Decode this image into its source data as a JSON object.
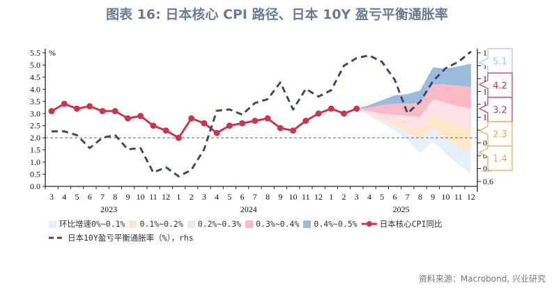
{
  "title": "图表 16: 日本核心 CPI 路径、日本 10Y 盈亏平衡通胀率",
  "source": "资料来源：Macrobond, 兴业研究",
  "chart_data": {
    "type": "line",
    "title": "图表 16: 日本核心 CPI 路径、日本 10Y 盈亏平衡通胀率",
    "ylabel": "%",
    "ylim": [
      0,
      5.5
    ],
    "yticks": [
      "0.0",
      "0.5",
      "1.0",
      "1.5",
      "2.0",
      "2.5",
      "3.0",
      "3.5",
      "4.0",
      "4.5",
      "5.0",
      "5.5"
    ],
    "y2lim": [
      0.562,
      1.6
    ],
    "y2ticks": [
      "0.6",
      "0.7",
      "0.8",
      "0.9",
      "1.0",
      "1.1",
      "1.2",
      "1.3",
      "1.4",
      "1.5",
      "1.6"
    ],
    "reference_line": 2.0,
    "x_month_labels": [
      "3",
      "4",
      "5",
      "6",
      "7",
      "8",
      "9",
      "10",
      "11",
      "12",
      "1",
      "2",
      "3",
      "4",
      "5",
      "6",
      "7",
      "8",
      "9",
      "10",
      "11",
      "12",
      "1",
      "2",
      "3",
      "4",
      "5",
      "6",
      "7",
      "8",
      "9",
      "10",
      "11",
      "12"
    ],
    "years": [
      {
        "label": "2023",
        "start": 0,
        "end": 9
      },
      {
        "label": "2024",
        "start": 10,
        "end": 21
      },
      {
        "label": "2025",
        "start": 22,
        "end": 33
      }
    ],
    "series": [
      {
        "name": "日本核心CPI同比",
        "axis": "left",
        "color": "#c8374e",
        "start": 0,
        "values": [
          3.1,
          3.4,
          3.2,
          3.3,
          3.1,
          3.1,
          2.8,
          2.9,
          2.5,
          2.3,
          2.0,
          2.8,
          2.6,
          2.2,
          2.5,
          2.6,
          2.7,
          2.8,
          2.4,
          2.3,
          2.7,
          3.0,
          3.2,
          3.0,
          3.2
        ]
      },
      {
        "name": "日本10Y盈亏平衡通胀率（%），rhs",
        "axis": "right",
        "color": "#3e4a62",
        "dashed": true,
        "start": 0,
        "values": [
          0.99,
          0.99,
          0.96,
          0.86,
          0.94,
          0.96,
          0.85,
          0.86,
          0.67,
          0.71,
          0.64,
          0.69,
          0.85,
          1.15,
          1.16,
          1.12,
          1.21,
          1.24,
          1.37,
          1.16,
          1.32,
          1.26,
          1.31,
          1.5,
          1.56,
          1.58,
          1.53,
          1.39,
          1.13,
          1.22,
          1.38,
          1.48,
          1.53,
          1.61
        ]
      }
    ],
    "fan": {
      "start": 24,
      "bottom": [
        3.2,
        2.9,
        2.6,
        2.3,
        1.9,
        1.35,
        1.85,
        1.35,
        0.9,
        0.5
      ],
      "bands": [
        {
          "name": "环比增速0%~0.1%",
          "color": "#e9eff8",
          "top": [
            3.2,
            2.95,
            2.75,
            2.5,
            2.2,
            1.95,
            2.4,
            1.95,
            1.65,
            1.37
          ]
        },
        {
          "name": "0.1%~0.2%",
          "color": "#fde7c8",
          "top": [
            3.2,
            3.0,
            2.85,
            2.65,
            2.45,
            2.35,
            2.95,
            2.7,
            2.5,
            2.3
          ]
        },
        {
          "name": "0.2%~0.3%",
          "color": "#fde0e3",
          "top": [
            3.2,
            3.1,
            3.0,
            2.95,
            2.9,
            2.85,
            3.6,
            3.45,
            3.3,
            3.2
          ]
        },
        {
          "name": "0.3%~0.4%",
          "color": "#f9b9c7",
          "top": [
            3.2,
            3.25,
            3.35,
            3.4,
            3.4,
            3.45,
            4.2,
            4.2,
            4.15,
            4.1
          ]
        },
        {
          "name": "0.4%~0.5%",
          "color": "#9abbdc",
          "top": [
            3.2,
            3.35,
            3.55,
            3.75,
            3.8,
            3.95,
            4.9,
            4.85,
            4.95,
            5.05
          ]
        }
      ]
    },
    "callouts": [
      {
        "label": "5.1",
        "value": 5.1,
        "color": "#a9c1dd"
      },
      {
        "label": "4.2",
        "value": 4.2,
        "color": "#c8374e"
      },
      {
        "label": "3.2",
        "value": 3.2,
        "color": "#c8374e"
      },
      {
        "label": "2.3",
        "value": 2.3,
        "color": "#e8a94a"
      },
      {
        "label": "1.4",
        "value": 1.4,
        "color": "#e8a94a"
      }
    ]
  }
}
